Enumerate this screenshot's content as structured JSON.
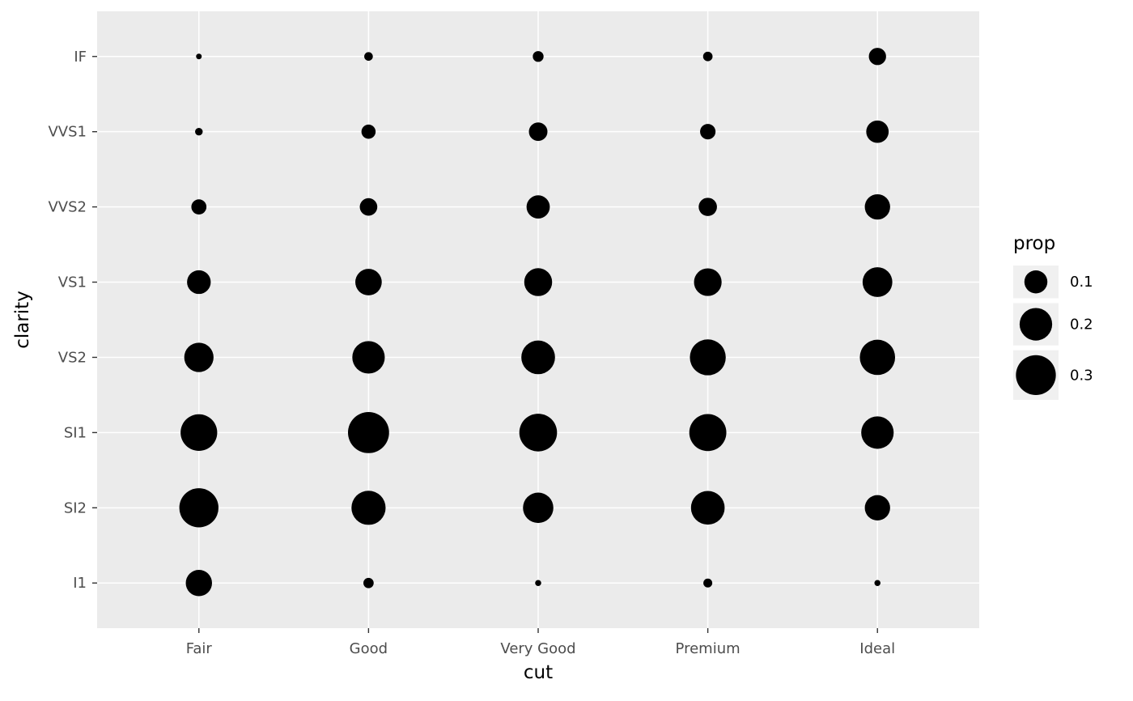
{
  "figure": {
    "background": "#FFFFFF",
    "panel_background": "#EBEBEB",
    "grid_color": "#FFFFFF",
    "point_color": "#000000",
    "axis_text_color": "#4D4D4D",
    "tick_color": "#333333",
    "legend_key_background": "#F0F0F0"
  },
  "chart_data": {
    "type": "scatter",
    "subtype": "bubble-proportion-grid",
    "title": "",
    "xlabel": "cut",
    "ylabel": "clarity",
    "x_categories": [
      "Fair",
      "Good",
      "Very Good",
      "Premium",
      "Ideal"
    ],
    "y_categories_top_to_bottom": [
      "IF",
      "VVS1",
      "VVS2",
      "VS1",
      "VS2",
      "SI1",
      "SI2",
      "I1"
    ],
    "size_variable": "prop",
    "prop_matrix_rows_y_cols_x": [
      [
        0.006,
        0.014,
        0.022,
        0.017,
        0.056
      ],
      [
        0.011,
        0.038,
        0.065,
        0.045,
        0.095
      ],
      [
        0.043,
        0.058,
        0.102,
        0.063,
        0.121
      ],
      [
        0.106,
        0.132,
        0.147,
        0.144,
        0.167
      ],
      [
        0.162,
        0.199,
        0.214,
        0.243,
        0.235
      ],
      [
        0.253,
        0.318,
        0.268,
        0.259,
        0.199
      ],
      [
        0.289,
        0.22,
        0.174,
        0.214,
        0.121
      ],
      [
        0.13,
        0.02,
        0.007,
        0.015,
        0.007
      ]
    ],
    "legend": {
      "title": "prop",
      "values": [
        0.1,
        0.2,
        0.3
      ],
      "labels": [
        "0.1",
        "0.2",
        "0.3"
      ],
      "position": "right"
    },
    "grid": true,
    "axis_ranges": {
      "x": "discrete (5 categories)",
      "y": "discrete (8 categories)"
    }
  }
}
